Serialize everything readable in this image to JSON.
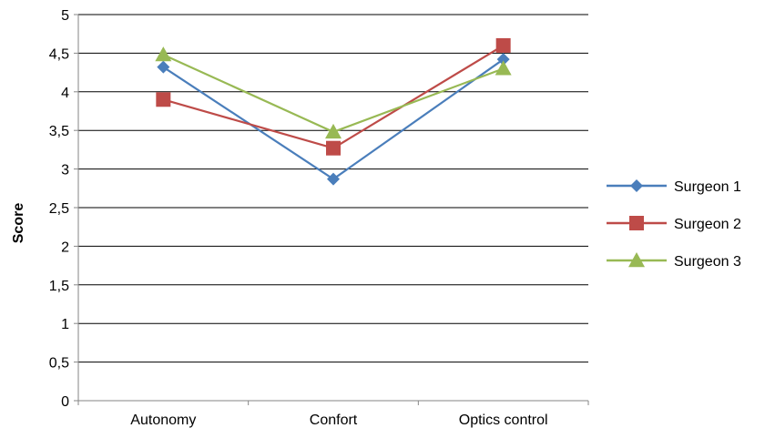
{
  "chart_data": {
    "type": "line",
    "title": "",
    "xlabel": "",
    "ylabel": "Score",
    "categories": [
      "Autonomy",
      "Confort",
      "Optics control"
    ],
    "series": [
      {
        "name": "Surgeon 1",
        "values": [
          4.32,
          2.87,
          4.42
        ],
        "color": "#4a7ebb",
        "marker": "diamond"
      },
      {
        "name": "Surgeon 2",
        "values": [
          3.9,
          3.27,
          4.6
        ],
        "color": "#be4b48",
        "marker": "square"
      },
      {
        "name": "Surgeon 3",
        "values": [
          4.48,
          3.48,
          4.3
        ],
        "color": "#98b954",
        "marker": "triangle"
      }
    ],
    "ylim": [
      0,
      5
    ],
    "yticks": [
      "0",
      "0,5",
      "1",
      "1,5",
      "2",
      "2,5",
      "3",
      "3,5",
      "4",
      "4,5",
      "5"
    ],
    "grid": true,
    "legend_position": "right"
  }
}
